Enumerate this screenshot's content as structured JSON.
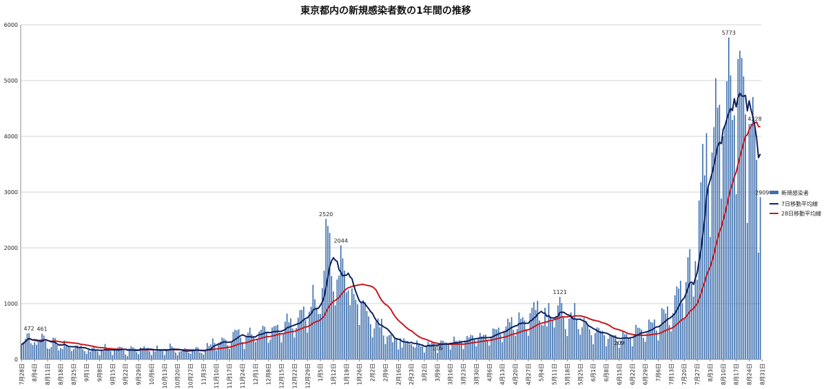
{
  "chart_data": {
    "type": "bar",
    "title": "東京都内の新規感染者数の1年間の推移",
    "xlabel": "",
    "ylabel": "",
    "ylim": [
      0,
      6000
    ],
    "yticks": [
      0,
      1000,
      2000,
      3000,
      4000,
      5000,
      6000
    ],
    "grid": true,
    "legend_position": "right",
    "colors": {
      "bars": "#3d6fae",
      "ma7": "#0d1f5c",
      "ma28": "#c8161d",
      "grid": "#d0d0d0"
    },
    "x_tick_labels": [
      "7月28日",
      "8月4日",
      "8月11日",
      "8月18日",
      "8月25日",
      "9月1日",
      "9月8日",
      "9月15日",
      "9月22日",
      "9月29日",
      "10月6日",
      "10月13日",
      "10月20日",
      "10月27日",
      "11月3日",
      "11月10日",
      "11月17日",
      "11月24日",
      "12月1日",
      "12月8日",
      "12月15日",
      "12月22日",
      "12月29日",
      "1月5日",
      "1月12日",
      "1月19日",
      "1月26日",
      "2月2日",
      "2月9日",
      "2月16日",
      "2月23日",
      "3月2日",
      "3月9日",
      "3月16日",
      "3月23日",
      "3月30日",
      "4月6日",
      "4月13日",
      "4月20日",
      "4月27日",
      "5月4日",
      "5月11日",
      "5月18日",
      "5月25日",
      "6月1日",
      "6月8日",
      "6月15日",
      "6月22日",
      "6月29日",
      "7月6日",
      "7月13日",
      "7月20日",
      "7月27日",
      "8月3日",
      "8月10日",
      "8月17日",
      "8月24日",
      "8月31日"
    ],
    "weekly_values": [
      [
        266,
        311,
        367,
        463,
        472,
        290,
        258
      ],
      [
        309,
        263,
        331,
        360,
        461,
        429,
        331
      ],
      [
        197,
        188,
        222,
        389,
        385,
        260,
        161
      ],
      [
        207,
        186,
        339,
        258,
        247,
        212,
        148
      ],
      [
        182,
        236,
        250,
        226,
        247,
        181,
        148
      ],
      [
        100,
        170,
        141,
        211,
        226,
        181,
        146
      ],
      [
        77,
        170,
        149,
        276,
        187,
        181,
        146
      ],
      [
        80,
        163,
        191,
        220,
        228,
        218,
        163
      ],
      [
        88,
        59,
        195,
        235,
        218,
        196,
        132
      ],
      [
        93,
        212,
        194,
        235,
        196,
        207,
        145
      ],
      [
        78,
        177,
        142,
        248,
        186,
        180,
        146
      ],
      [
        78,
        166,
        177,
        284,
        235,
        201,
        124
      ],
      [
        78,
        139,
        150,
        185,
        203,
        186,
        123
      ],
      [
        102,
        158,
        171,
        221,
        215,
        124,
        116
      ],
      [
        87,
        157,
        293,
        242,
        269,
        374,
        294
      ],
      [
        157,
        293,
        317,
        393,
        374,
        352,
        255
      ],
      [
        186,
        298,
        493,
        534,
        522,
        539,
        391
      ],
      [
        314,
        186,
        401,
        481,
        570,
        449,
        418
      ],
      [
        311,
        372,
        500,
        533,
        602,
        584,
        491
      ],
      [
        299,
        352,
        572,
        595,
        602,
        621,
        480
      ],
      [
        305,
        460,
        678,
        822,
        664,
        736,
        556
      ],
      [
        392,
        563,
        748,
        884,
        888,
        949,
        708
      ],
      [
        481,
        856,
        944,
        1337,
        1080,
        934,
        814
      ],
      [
        816,
        1278,
        1591,
        2520,
        2392,
        2268,
        1494
      ],
      [
        1219,
        970,
        1433,
        1502,
        2044,
        1809,
        1592
      ],
      [
        1204,
        1240,
        973,
        1274,
        1175,
        1070,
        986
      ],
      [
        618,
        1026,
        1064,
        1026,
        868,
        769,
        633
      ],
      [
        393,
        556,
        676,
        734,
        577,
        729,
        429
      ],
      [
        276,
        412,
        434,
        445,
        307,
        369,
        371
      ],
      [
        178,
        378,
        213,
        378,
        307,
        329,
        272
      ],
      [
        272,
        232,
        213,
        340,
        270,
        234,
        237
      ],
      [
        121,
        232,
        316,
        279,
        301,
        293,
        237
      ],
      [
        116,
        290,
        340,
        335,
        304,
        303,
        256
      ],
      [
        175,
        300,
        409,
        335,
        323,
        342,
        330
      ],
      [
        187,
        337,
        420,
        394,
        440,
        430,
        354
      ],
      [
        234,
        364,
        475,
        414,
        440,
        446,
        355
      ],
      [
        249,
        399,
        555,
        545,
        537,
        570,
        453
      ],
      [
        306,
        510,
        591,
        729,
        667,
        759,
        528
      ],
      [
        422,
        543,
        843,
        729,
        759,
        698,
        543
      ],
      [
        425,
        828,
        925,
        1027,
        887,
        1050,
        698
      ],
      [
        621,
        609,
        925,
        591,
        1010,
        769,
        698
      ],
      [
        573,
        774,
        969,
        1121,
        1010,
        772,
        543
      ],
      [
        419,
        732,
        843,
        766,
        1010,
        723,
        543
      ],
      [
        442,
        577,
        743,
        684,
        614,
        539,
        436
      ],
      [
        273,
        471,
        575,
        562,
        514,
        513,
        435
      ],
      [
        235,
        369,
        440,
        439,
        433,
        436,
        318
      ],
      [
        209,
        337,
        503,
        452,
        453,
        388,
        376
      ],
      [
        236,
        435,
        619,
        570,
        562,
        534,
        388
      ],
      [
        317,
        476,
        714,
        673,
        660,
        716,
        518
      ],
      [
        342,
        593,
        920,
        896,
        822,
        950,
        614
      ],
      [
        502,
        830,
        1149,
        1308,
        1271,
        1410,
        1008
      ],
      [
        727,
        1387,
        1832,
        1979,
        1359,
        1128,
        1763
      ],
      [
        1429,
        2848,
        3177,
        3865,
        3300,
        4058,
        3058
      ],
      [
        2195,
        3709,
        4166,
        5042,
        4515,
        4566,
        2884
      ],
      [
        4001,
        4200,
        4989,
        5773,
        5094,
        4295,
        4377
      ],
      [
        2962,
        5386,
        5534,
        5405,
        5074,
        4392,
        2447
      ],
      [
        4220,
        4227,
        4704,
        4228,
        3581,
        1915
      ],
      [
        2909
      ]
    ],
    "ma7_label": "7日移動平均線",
    "ma28_label": "28日移動平均線",
    "bars_label": "新規感染者",
    "annotations": [
      {
        "day": 4,
        "value": 472,
        "label": "472"
      },
      {
        "day": 11,
        "value": 461,
        "label": "461"
      },
      {
        "day": 164,
        "value": 2520,
        "label": "2520"
      },
      {
        "day": 172,
        "value": 2044,
        "label": "2044"
      },
      {
        "day": 224,
        "value": 116,
        "label": "116"
      },
      {
        "day": 290,
        "value": 1121,
        "label": "1121"
      },
      {
        "day": 322,
        "value": 209,
        "label": "209"
      },
      {
        "day": 381,
        "value": 5773,
        "label": "5773"
      },
      {
        "day": 395,
        "value": 4228,
        "label": "4228"
      },
      {
        "day": 399,
        "value": 2909,
        "label": "2909"
      }
    ]
  }
}
